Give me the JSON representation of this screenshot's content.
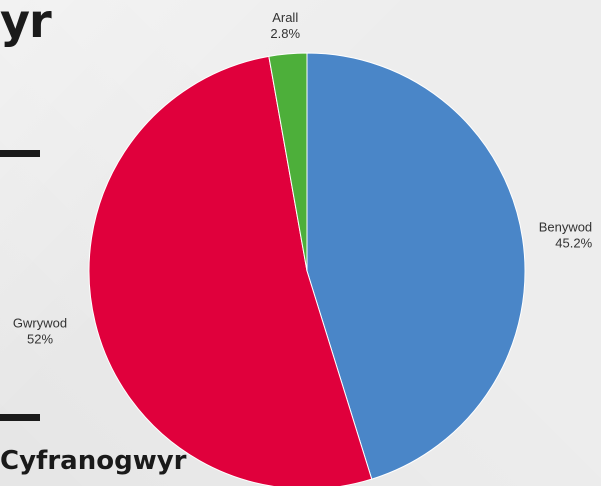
{
  "page": {
    "heading_fragment": "yr",
    "footer_fragment": "Cyfranogwyr"
  },
  "chart_data": {
    "type": "pie",
    "title": "",
    "start_angle_deg": 0,
    "direction": "clockwise",
    "slices": [
      {
        "label": "Benywod",
        "value": 45.2,
        "value_label": "45.2%",
        "color": "#4a86c8"
      },
      {
        "label": "Gwrywod",
        "value": 52,
        "value_label": "52%",
        "color": "#e0003c"
      },
      {
        "label": "Arall",
        "value": 2.8,
        "value_label": "2.8%",
        "color": "#4daf3a"
      }
    ],
    "legend": "none"
  }
}
